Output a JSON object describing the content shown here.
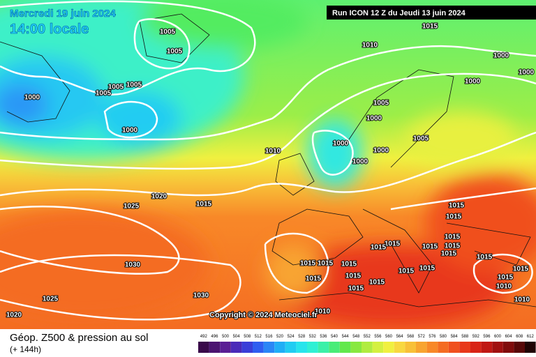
{
  "map": {
    "date": "Mercredi 19 juin 2024",
    "time": "14:00 locale",
    "run": "Run ICON 12 Z du Jeudi 13 juin 2024",
    "copyright": "Copyright © 2024 Meteociel.fr",
    "caption": "Géop. Z500 & pression au sol",
    "lead": "(+ 144h)",
    "pressure_labels": [
      1005,
      1005,
      1005,
      1005,
      1005,
      1000,
      1000,
      1010,
      1015,
      1000,
      1000,
      1000,
      1005,
      1000,
      1005,
      1000,
      1000,
      1000,
      1010,
      1020,
      1025,
      1015,
      1015,
      1015,
      1015,
      1015,
      1015,
      1015,
      1015,
      1015,
      1015,
      1015,
      1015,
      1015,
      1015,
      1010,
      1015,
      1015,
      1015,
      1015,
      1015,
      1015,
      1015,
      1030,
      1030,
      1025,
      1020,
      1010,
      1010
    ],
    "scale": {
      "values": [
        492,
        496,
        500,
        504,
        508,
        512,
        516,
        520,
        524,
        528,
        532,
        536,
        540,
        544,
        548,
        552,
        556,
        560,
        564,
        568,
        572,
        576,
        580,
        584,
        588,
        592,
        596,
        600,
        604,
        608,
        612
      ],
      "colors": [
        "#3a0a4a",
        "#4b1470",
        "#5a1e94",
        "#4a2ab8",
        "#3a3ed8",
        "#2f5ef0",
        "#2a86f6",
        "#20aef6",
        "#22ccf2",
        "#28e4ec",
        "#30f0d4",
        "#3cf0a8",
        "#48ec78",
        "#62e84c",
        "#88e840",
        "#b0ec40",
        "#d4f040",
        "#f0f040",
        "#f8d840",
        "#f8c038",
        "#f8a430",
        "#f88828",
        "#f46c22",
        "#f0501e",
        "#e8381a",
        "#d82416",
        "#c01814",
        "#a01010",
        "#800c0c",
        "#580808",
        "#200404"
      ]
    }
  }
}
